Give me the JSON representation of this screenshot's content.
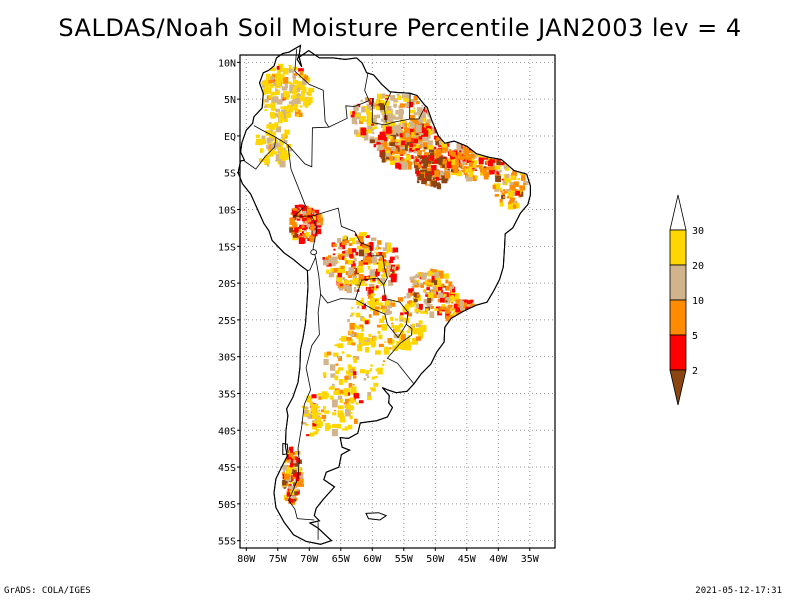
{
  "title": "SALDAS/Noah Soil Moisture Percentile JAN2003 lev = 4",
  "map": {
    "lon_range": [
      -81,
      -31
    ],
    "lat_range": [
      -56,
      11
    ],
    "lat_labels": [
      "10N",
      "5N",
      "EQ",
      "5S",
      "10S",
      "15S",
      "20S",
      "25S",
      "30S",
      "35S",
      "40S",
      "45S",
      "50S",
      "55S"
    ],
    "lat_values": [
      10,
      5,
      0,
      -5,
      -10,
      -15,
      -20,
      -25,
      -30,
      -35,
      -40,
      -45,
      -50,
      -55
    ],
    "lon_labels": [
      "80W",
      "75W",
      "70W",
      "65W",
      "60W",
      "55W",
      "50W",
      "45W",
      "40W",
      "35W"
    ],
    "lon_values": [
      -80,
      -75,
      -70,
      -65,
      -60,
      -55,
      -50,
      -45,
      -40,
      -35
    ],
    "grid": "dotted"
  },
  "legend": {
    "orientation": "vertical",
    "labels": [
      "2",
      "5",
      "10",
      "20",
      "30"
    ],
    "colors": [
      "#8b4513",
      "#ff0000",
      "#ff8c00",
      "#d2b48c",
      "#ffd700",
      "#ffffff"
    ]
  },
  "footer": {
    "left": "GrADS: COLA/IGES",
    "right": "2021-05-12-17:31"
  }
}
